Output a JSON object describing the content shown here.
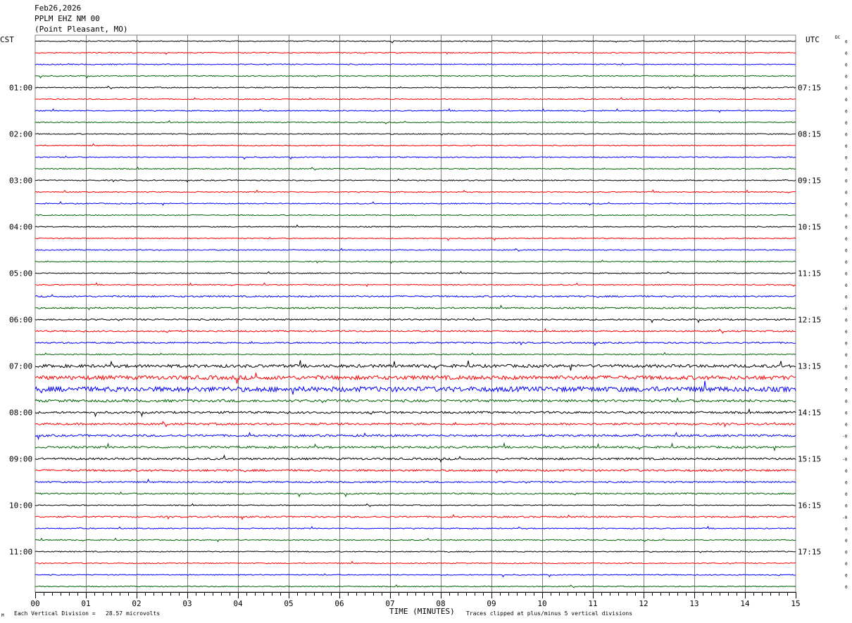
{
  "header": {
    "date": "Feb26,2026",
    "station": "PPLM EHZ NM 00",
    "location": "(Point Pleasant, MO)"
  },
  "left_timezone": "CST",
  "right_timezone": "UTC",
  "dc_label": "DC",
  "left_time_labels": [
    "01:00",
    "02:00",
    "03:00",
    "04:00",
    "05:00",
    "06:00",
    "07:00",
    "08:00",
    "09:00",
    "10:00",
    "11:00"
  ],
  "right_time_labels": [
    "07:15",
    "08:15",
    "09:15",
    "10:15",
    "11:15",
    "12:15",
    "13:15",
    "14:15",
    "15:15",
    "16:15",
    "17:15"
  ],
  "x_tick_labels": [
    "00",
    "01",
    "02",
    "03",
    "04",
    "05",
    "06",
    "07",
    "08",
    "09",
    "10",
    "11",
    "12",
    "13",
    "14",
    "15"
  ],
  "x_axis_title": "TIME (MINUTES)",
  "scale_note": "Each Vertical Division =   28.57 microvolts",
  "clip_note": "Traces clipped at plus/minus 5 vertical divisions",
  "corner_mark": "M",
  "dc_offsets": [
    "0",
    "0",
    "0",
    "0",
    "0",
    "0",
    "0",
    "0",
    "0",
    "0",
    "0",
    "0",
    "0",
    "0",
    "0",
    "0",
    "0",
    "0",
    "0",
    "0",
    "0",
    "0",
    "0",
    "-0",
    "0",
    "0",
    "0",
    "0",
    "0",
    "0",
    "0",
    "0",
    "0",
    "0",
    "-0",
    "0",
    "-0",
    "0",
    "0",
    "0",
    "0",
    "-0",
    "0",
    "0",
    "0",
    "0",
    "0",
    "0"
  ],
  "colors": {
    "trace_cycle": [
      "#000000",
      "#ff0000",
      "#0000ff",
      "#006400"
    ],
    "grid": "#808080",
    "background": "#ffffff"
  },
  "chart_data": {
    "type": "helicorder",
    "traces_per_hour": 4,
    "minutes_per_line": 15,
    "num_traces": 48,
    "x_range_minutes": [
      0,
      15
    ],
    "trace_amplitude_level": [
      1,
      1,
      1,
      1,
      1,
      1,
      1,
      1,
      1,
      1,
      1,
      1,
      1,
      1,
      1,
      1,
      1,
      1,
      1,
      1,
      1,
      1,
      1.5,
      1.5,
      1.5,
      1.5,
      1.5,
      1,
      3,
      4,
      5,
      2.5,
      2,
      2,
      2,
      2,
      2,
      2,
      1.5,
      1.5,
      1,
      1.5,
      1,
      1,
      1,
      1,
      1,
      1
    ]
  }
}
